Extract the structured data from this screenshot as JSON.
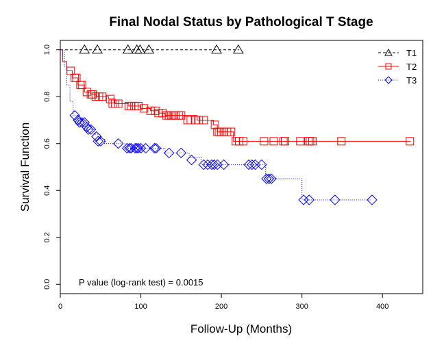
{
  "chart_data": {
    "type": "line",
    "title": "Final Nodal Status by Pathological T Stage",
    "xlabel": "Follow-Up (Months)",
    "ylabel": "Survival Function",
    "xlim": [
      0,
      450
    ],
    "ylim": [
      -0.04,
      1.04
    ],
    "x_ticks": [
      0,
      100,
      200,
      300,
      400
    ],
    "y_ticks": [
      0.0,
      0.2,
      0.4,
      0.6,
      0.8,
      1.0
    ],
    "x_tick_labels": [
      "0",
      "100",
      "200",
      "300",
      "400"
    ],
    "y_tick_labels": [
      "0.0",
      "0.2",
      "0.4",
      "0.6",
      "0.8",
      "1.0"
    ],
    "legend_position": "top-right",
    "grid": false,
    "annotation": "P value (log-rank test) = 0.0015",
    "series": [
      {
        "name": "T1",
        "color": "#000000",
        "line_style": "dashed",
        "marker": "triangle",
        "steps": [
          [
            0,
            1.0
          ],
          [
            222,
            1.0
          ]
        ],
        "censored": [
          [
            30,
            1.0
          ],
          [
            46,
            1.0
          ],
          [
            84,
            1.0
          ],
          [
            95,
            1.0
          ],
          [
            99,
            1.0
          ],
          [
            110,
            1.0
          ],
          [
            194,
            1.0
          ],
          [
            221,
            1.0
          ]
        ]
      },
      {
        "name": "T2",
        "color": "#ff0000",
        "line_style": "solid",
        "marker": "square",
        "steps": [
          [
            0,
            1.0
          ],
          [
            3,
            0.95
          ],
          [
            8,
            0.91
          ],
          [
            15,
            0.88
          ],
          [
            22,
            0.85
          ],
          [
            30,
            0.82
          ],
          [
            38,
            0.81
          ],
          [
            45,
            0.8
          ],
          [
            60,
            0.79
          ],
          [
            68,
            0.77
          ],
          [
            85,
            0.76
          ],
          [
            100,
            0.75
          ],
          [
            112,
            0.74
          ],
          [
            122,
            0.73
          ],
          [
            130,
            0.72
          ],
          [
            170,
            0.7
          ],
          [
            190,
            0.68
          ],
          [
            195,
            0.65
          ],
          [
            215,
            0.61
          ],
          [
            435,
            0.61
          ]
        ],
        "censored": [
          [
            13,
            0.91
          ],
          [
            18,
            0.88
          ],
          [
            20,
            0.88
          ],
          [
            25,
            0.85
          ],
          [
            27,
            0.85
          ],
          [
            33,
            0.82
          ],
          [
            38,
            0.81
          ],
          [
            40,
            0.81
          ],
          [
            44,
            0.8
          ],
          [
            48,
            0.8
          ],
          [
            52,
            0.8
          ],
          [
            62,
            0.79
          ],
          [
            65,
            0.77
          ],
          [
            68,
            0.77
          ],
          [
            72,
            0.77
          ],
          [
            85,
            0.76
          ],
          [
            88,
            0.76
          ],
          [
            92,
            0.76
          ],
          [
            97,
            0.76
          ],
          [
            104,
            0.75
          ],
          [
            112,
            0.74
          ],
          [
            118,
            0.74
          ],
          [
            122,
            0.73
          ],
          [
            127,
            0.73
          ],
          [
            132,
            0.72
          ],
          [
            135,
            0.72
          ],
          [
            138,
            0.72
          ],
          [
            140,
            0.72
          ],
          [
            143,
            0.72
          ],
          [
            147,
            0.72
          ],
          [
            150,
            0.72
          ],
          [
            158,
            0.7
          ],
          [
            162,
            0.7
          ],
          [
            168,
            0.7
          ],
          [
            172,
            0.7
          ],
          [
            178,
            0.7
          ],
          [
            192,
            0.68
          ],
          [
            195,
            0.65
          ],
          [
            197,
            0.65
          ],
          [
            200,
            0.65
          ],
          [
            203,
            0.65
          ],
          [
            207,
            0.65
          ],
          [
            212,
            0.65
          ],
          [
            218,
            0.61
          ],
          [
            222,
            0.61
          ],
          [
            227,
            0.61
          ],
          [
            253,
            0.61
          ],
          [
            265,
            0.61
          ],
          [
            277,
            0.61
          ],
          [
            279,
            0.61
          ],
          [
            298,
            0.61
          ],
          [
            308,
            0.61
          ],
          [
            310,
            0.61
          ],
          [
            313,
            0.61
          ],
          [
            349,
            0.61
          ],
          [
            434,
            0.61
          ]
        ]
      },
      {
        "name": "T3",
        "color": "#0000ff",
        "line_style": "dotted",
        "marker": "diamond",
        "steps": [
          [
            0,
            1.0
          ],
          [
            5,
            0.93
          ],
          [
            8,
            0.85
          ],
          [
            12,
            0.78
          ],
          [
            16,
            0.72
          ],
          [
            22,
            0.7
          ],
          [
            28,
            0.69
          ],
          [
            34,
            0.66
          ],
          [
            42,
            0.64
          ],
          [
            48,
            0.62
          ],
          [
            55,
            0.6
          ],
          [
            70,
            0.6
          ],
          [
            80,
            0.58
          ],
          [
            130,
            0.56
          ],
          [
            150,
            0.56
          ],
          [
            160,
            0.54
          ],
          [
            175,
            0.51
          ],
          [
            230,
            0.51
          ],
          [
            247,
            0.51
          ],
          [
            255,
            0.45
          ],
          [
            270,
            0.45
          ],
          [
            300,
            0.36
          ],
          [
            387,
            0.36
          ]
        ],
        "censored": [
          [
            18,
            0.72
          ],
          [
            22,
            0.7
          ],
          [
            24,
            0.69
          ],
          [
            27,
            0.69
          ],
          [
            30,
            0.69
          ],
          [
            33,
            0.67
          ],
          [
            35,
            0.66
          ],
          [
            38,
            0.66
          ],
          [
            45,
            0.63
          ],
          [
            47,
            0.61
          ],
          [
            50,
            0.61
          ],
          [
            72,
            0.6
          ],
          [
            83,
            0.58
          ],
          [
            86,
            0.58
          ],
          [
            88,
            0.58
          ],
          [
            93,
            0.58
          ],
          [
            95,
            0.58
          ],
          [
            97,
            0.58
          ],
          [
            100,
            0.58
          ],
          [
            106,
            0.58
          ],
          [
            117,
            0.58
          ],
          [
            119,
            0.58
          ],
          [
            135,
            0.56
          ],
          [
            150,
            0.56
          ],
          [
            163,
            0.53
          ],
          [
            178,
            0.51
          ],
          [
            183,
            0.51
          ],
          [
            188,
            0.51
          ],
          [
            191,
            0.51
          ],
          [
            195,
            0.51
          ],
          [
            203,
            0.51
          ],
          [
            234,
            0.51
          ],
          [
            238,
            0.51
          ],
          [
            242,
            0.51
          ],
          [
            250,
            0.51
          ],
          [
            256,
            0.45
          ],
          [
            259,
            0.45
          ],
          [
            262,
            0.45
          ],
          [
            302,
            0.36
          ],
          [
            309,
            0.36
          ],
          [
            341,
            0.36
          ],
          [
            387,
            0.36
          ]
        ]
      }
    ]
  }
}
